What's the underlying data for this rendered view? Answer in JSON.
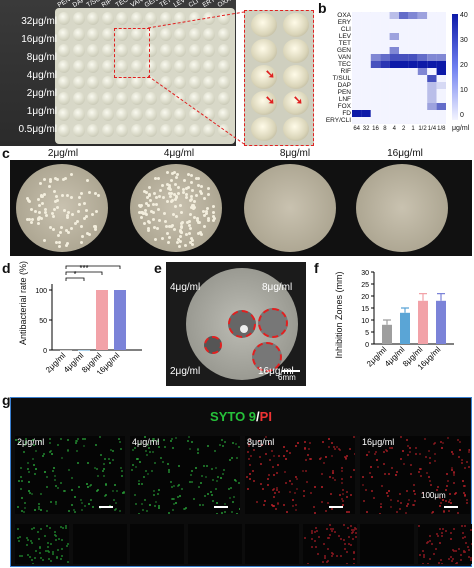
{
  "panel_labels": {
    "a": "a",
    "b": "b",
    "c": "c",
    "d": "d",
    "e": "e",
    "f": "f",
    "g": "g"
  },
  "panel_a": {
    "antibiotics": [
      "PEN",
      "DAP",
      "T/SUL",
      "RIF",
      "TEC",
      "VAN",
      "GEN",
      "TET",
      "LEV",
      "CLI",
      "ERY",
      "OXA"
    ],
    "concentrations": [
      "32μg/ml",
      "16μg/ml",
      "8μg/ml",
      "4μg/ml",
      "2μg/ml",
      "1μg/ml",
      "0.5μg/ml"
    ]
  },
  "panel_b": {
    "legend_max": "40",
    "legend_ticks": [
      "40",
      "30",
      "20",
      "10",
      "0"
    ],
    "legend_unit": "μg/ml",
    "colors": {
      "low": "#f3f4ff",
      "mid": "#6f7ff0",
      "high": "#1f2fd0",
      "max": "#0d1aa8"
    }
  },
  "chart_data": [
    {
      "type": "heatmap",
      "title": "",
      "rows": [
        "OXA",
        "ERY",
        "CLI",
        "LEV",
        "TET",
        "GEN",
        "VAN",
        "TEC",
        "RIF",
        "T/SUL",
        "DAP",
        "PEN",
        "LNF",
        "FOX",
        "FD",
        "ERY/CLI"
      ],
      "columns": [
        "64",
        "32",
        "16",
        "8",
        "4",
        "2",
        "1",
        "1/2",
        "1/4",
        "1/8"
      ],
      "values": [
        [
          0,
          0,
          0,
          0,
          10,
          25,
          20,
          15,
          0,
          0
        ],
        [
          0,
          0,
          0,
          0,
          0,
          0,
          0,
          0,
          0,
          0
        ],
        [
          0,
          0,
          0,
          0,
          0,
          0,
          0,
          0,
          0,
          0
        ],
        [
          0,
          0,
          0,
          0,
          15,
          0,
          0,
          0,
          0,
          0
        ],
        [
          0,
          0,
          0,
          0,
          0,
          0,
          0,
          0,
          0,
          0
        ],
        [
          0,
          0,
          0,
          0,
          20,
          0,
          0,
          0,
          0,
          0
        ],
        [
          0,
          0,
          20,
          25,
          30,
          30,
          30,
          25,
          20,
          20
        ],
        [
          0,
          0,
          30,
          35,
          40,
          40,
          40,
          40,
          40,
          40
        ],
        [
          0,
          0,
          0,
          0,
          0,
          0,
          0,
          20,
          0,
          40
        ],
        [
          0,
          0,
          0,
          0,
          0,
          0,
          0,
          0,
          30,
          0
        ],
        [
          0,
          0,
          0,
          0,
          0,
          0,
          0,
          0,
          10,
          5
        ],
        [
          0,
          0,
          0,
          0,
          0,
          0,
          0,
          0,
          10,
          0
        ],
        [
          0,
          0,
          0,
          0,
          0,
          0,
          0,
          0,
          10,
          0
        ],
        [
          0,
          0,
          0,
          0,
          0,
          0,
          0,
          0,
          15,
          25
        ],
        [
          40,
          40,
          0,
          0,
          0,
          0,
          0,
          0,
          0,
          0
        ],
        [
          0,
          0,
          0,
          0,
          0,
          0,
          0,
          0,
          0,
          0
        ]
      ],
      "color_range": [
        0,
        40
      ],
      "legend_unit": "μg/ml"
    },
    {
      "type": "bar",
      "title": "",
      "categories": [
        "2μg/ml",
        "4μg/ml",
        "8μg/ml",
        "16μg/ml"
      ],
      "values": [
        0,
        0,
        100,
        100
      ],
      "colors": [
        "#9e9e9e",
        "#5aa5d6",
        "#f2a2a8",
        "#7b83d8"
      ],
      "ylabel": "Antibacterial rate (%)",
      "annotations": [
        "*",
        "***",
        "***"
      ]
    },
    {
      "type": "bar",
      "title": "",
      "categories": [
        "2μg/ml",
        "4μg/ml",
        "8μg/ml",
        "16μg/ml"
      ],
      "values": [
        8,
        13,
        18,
        18
      ],
      "errors": [
        2,
        2,
        3,
        3
      ],
      "colors": [
        "#9e9e9e",
        "#5aa5d6",
        "#f2a2a8",
        "#7b83d8"
      ],
      "ylabel": "Inhibition Zones (mm)",
      "yticks": [
        "0",
        "5",
        "10",
        "15",
        "20",
        "25",
        "30"
      ],
      "ylim": [
        0,
        30
      ]
    }
  ],
  "panel_c": {
    "labels": [
      "2μg/ml",
      "4μg/ml",
      "8μg/ml",
      "16μg/ml"
    ]
  },
  "panel_e": {
    "labels": [
      "4μg/ml",
      "8μg/ml",
      "2μg/ml",
      "16μg/ml"
    ],
    "scale": "6mm"
  },
  "panel_g": {
    "title_green": "SYTO 9",
    "title_sep": "/",
    "title_red": "PI",
    "labels": [
      "2μg/ml",
      "4μg/ml",
      "8μg/ml",
      "16μg/ml"
    ],
    "scale": "100μm"
  },
  "panel_d_axis": {
    "yticks": [
      "100",
      "50",
      "0"
    ]
  }
}
